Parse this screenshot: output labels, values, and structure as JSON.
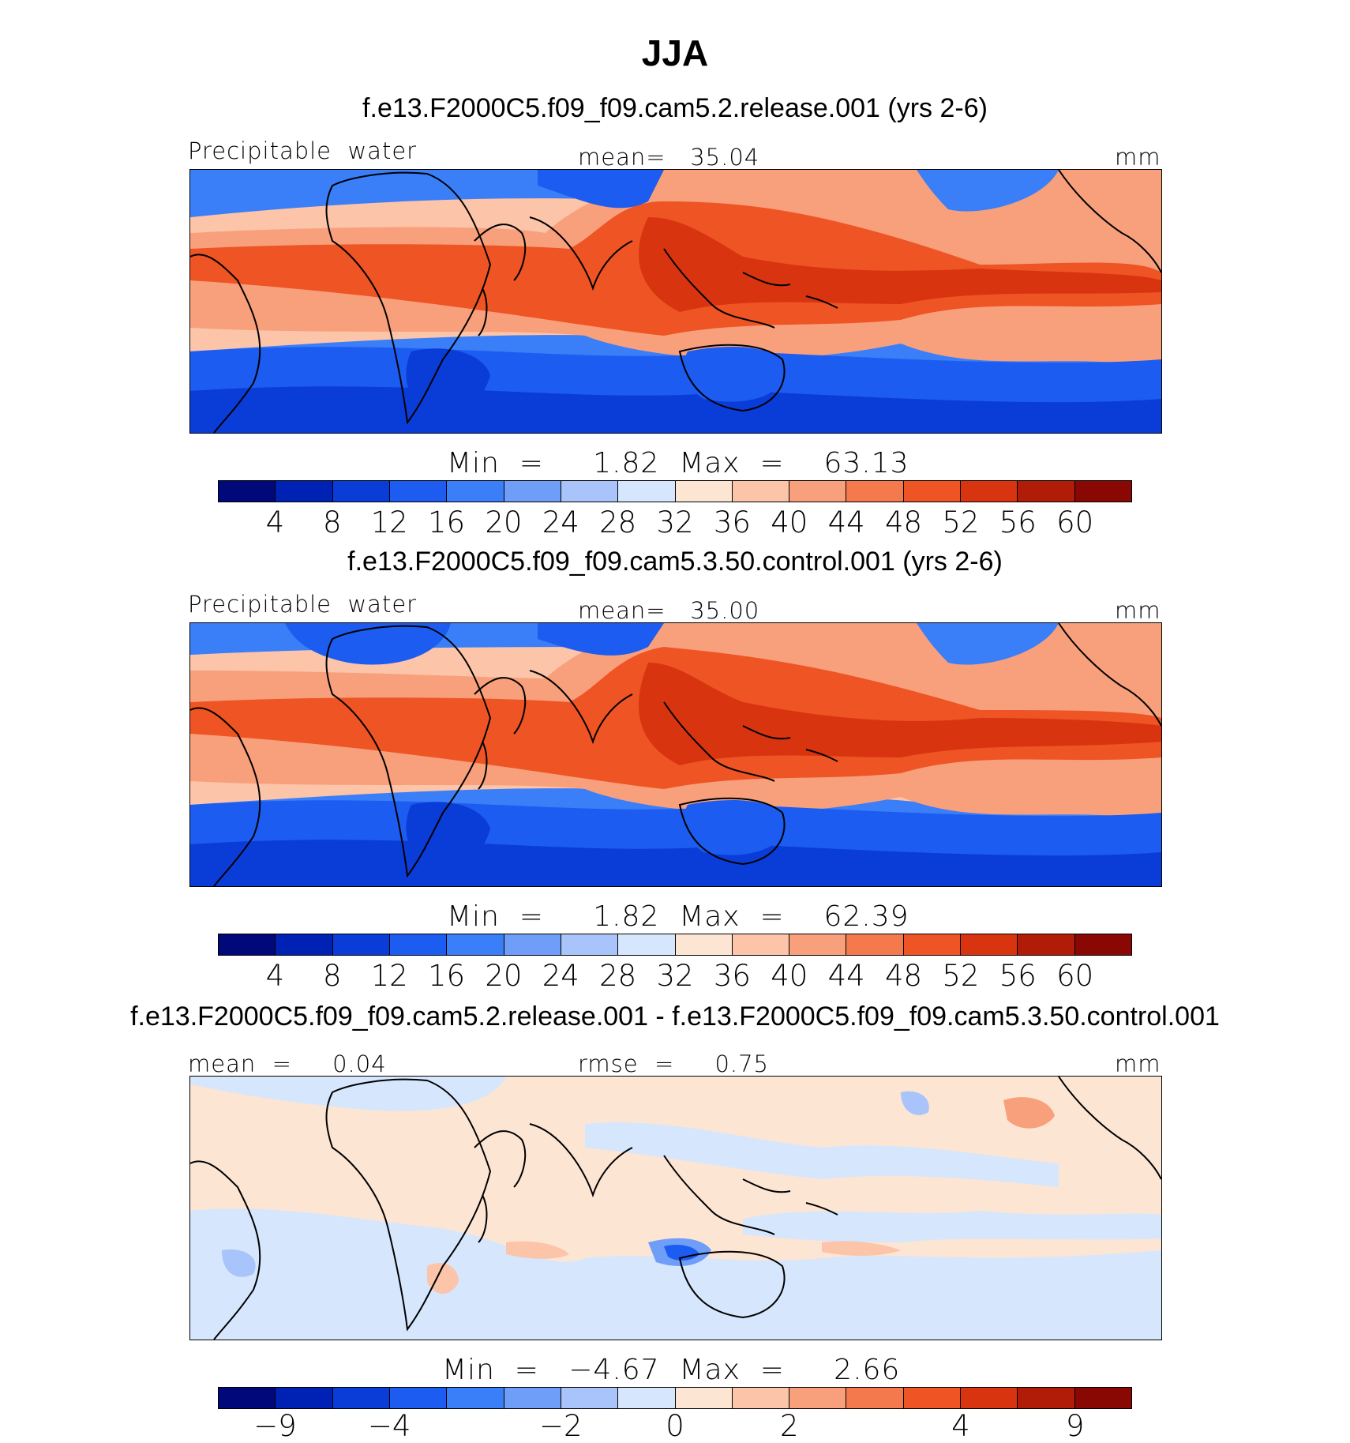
{
  "title": "JJA",
  "panels": [
    {
      "subtitle": "f.e13.F2000C5.f09_f09.cam5.2.release.001 (yrs 2-6)",
      "left_label": "Precipitable  water",
      "center_label": "mean=   35.04",
      "right_label": "mm",
      "minmax": "Min  =     1.82  Max  =    63.13",
      "colorbar": {
        "colors": [
          "#00087a",
          "#0022b4",
          "#0a3cd8",
          "#1c5cf0",
          "#3a7ef8",
          "#6e9ef8",
          "#a8c4fa",
          "#d6e6fc",
          "#fde5d4",
          "#fcc4a8",
          "#f8a07c",
          "#f47a4e",
          "#ee5424",
          "#d83410",
          "#b01c08",
          "#8a0804"
        ],
        "ticks": [
          "4",
          "8",
          "12",
          "16",
          "20",
          "24",
          "28",
          "32",
          "36",
          "40",
          "44",
          "48",
          "52",
          "56",
          "60"
        ]
      }
    },
    {
      "subtitle": "f.e13.F2000C5.f09_f09.cam5.3.50.control.001 (yrs 2-6)",
      "left_label": "Precipitable  water",
      "center_label": "mean=   35.00",
      "right_label": "mm",
      "minmax": "Min  =     1.82  Max  =    62.39",
      "colorbar": {
        "colors": [
          "#00087a",
          "#0022b4",
          "#0a3cd8",
          "#1c5cf0",
          "#3a7ef8",
          "#6e9ef8",
          "#a8c4fa",
          "#d6e6fc",
          "#fde5d4",
          "#fcc4a8",
          "#f8a07c",
          "#f47a4e",
          "#ee5424",
          "#d83410",
          "#b01c08",
          "#8a0804"
        ],
        "ticks": [
          "4",
          "8",
          "12",
          "16",
          "20",
          "24",
          "28",
          "32",
          "36",
          "40",
          "44",
          "48",
          "52",
          "56",
          "60"
        ]
      }
    },
    {
      "subtitle": "f.e13.F2000C5.f09_f09.cam5.2.release.001 - f.e13.F2000C5.f09_f09.cam5.3.50.control.001",
      "left_label": "mean  =     0.04",
      "center_label": "rmse  =     0.75",
      "right_label": "mm",
      "minmax": "Min  =   −4.67  Max  =     2.66",
      "colorbar": {
        "colors": [
          "#00087a",
          "#0022b4",
          "#0a3cd8",
          "#1c5cf0",
          "#3a7ef8",
          "#6e9ef8",
          "#a8c4fa",
          "#d6e6fc",
          "#fde5d4",
          "#fcc4a8",
          "#f8a07c",
          "#f47a4e",
          "#ee5424",
          "#d83410",
          "#b01c08",
          "#8a0804"
        ],
        "ticks": [
          "−9",
          "−4",
          "−2",
          "0",
          "2",
          "4",
          "9"
        ]
      }
    }
  ]
}
